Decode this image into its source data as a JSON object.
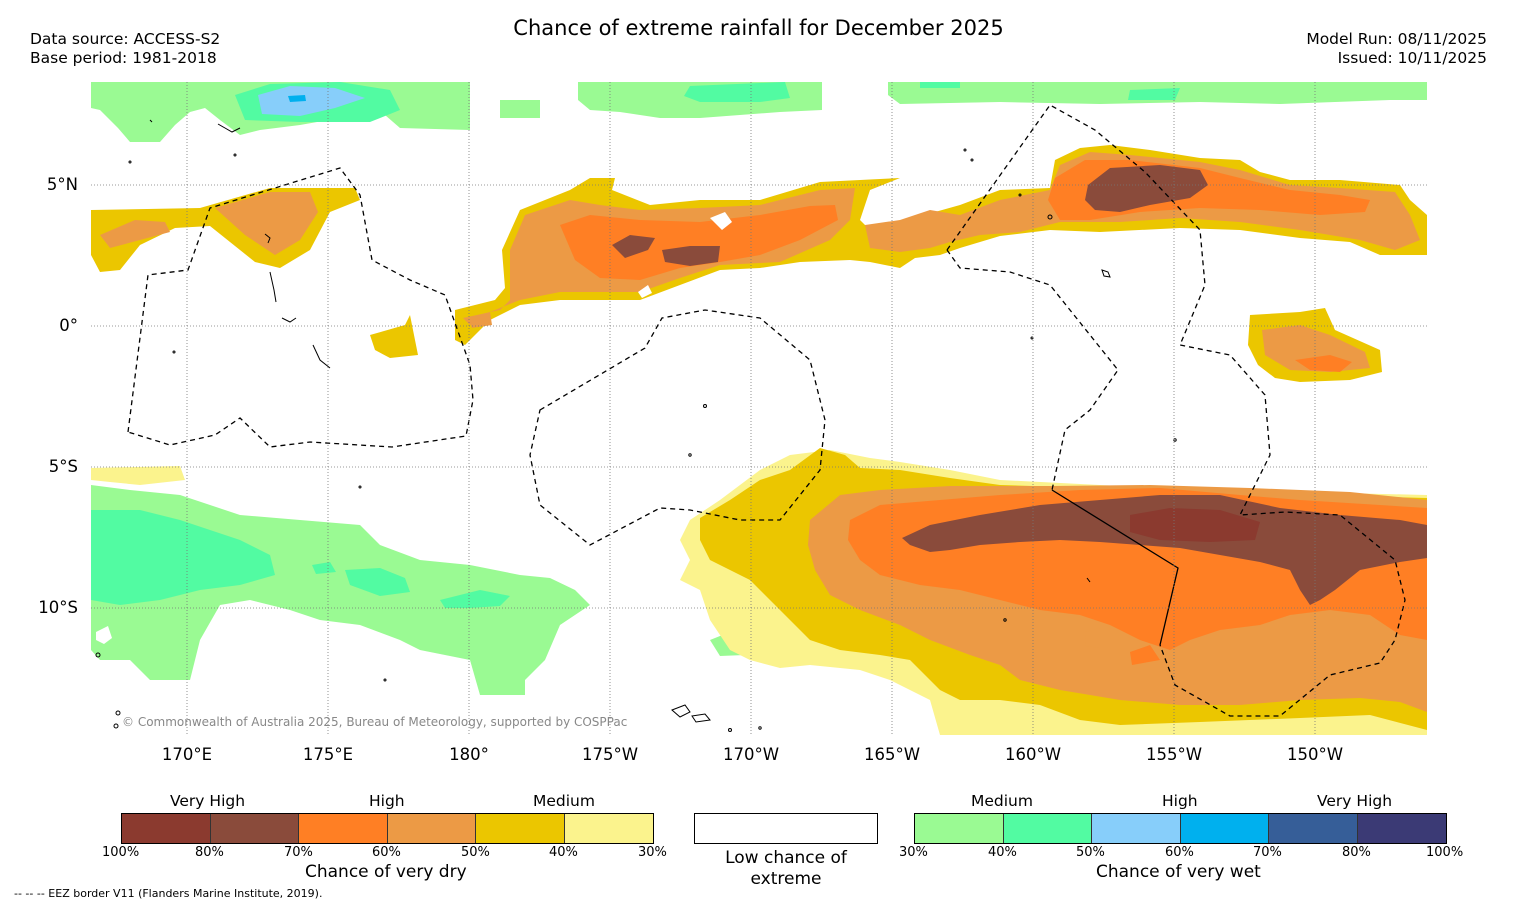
{
  "header": {
    "title": "Chance of extreme rainfall for December 2025",
    "data_source": "Data source: ACCESS-S2",
    "base_period": "Base period: 1981-2018",
    "model_run": "Model Run: 08/11/2025",
    "issued": "Issued: 10/11/2025"
  },
  "map": {
    "lat_labels": [
      "5°N",
      "0°",
      "5°S",
      "10°S"
    ],
    "lon_labels": [
      "170°E",
      "175°E",
      "180°",
      "175°W",
      "170°W",
      "165°W",
      "160°W",
      "155°W",
      "150°W"
    ],
    "copyright": "© Commonwealth of Australia 2025, Bureau of Meteorology, supported by COSPPac"
  },
  "legend": {
    "dry": {
      "categories": [
        "Very High",
        "High",
        "Medium"
      ],
      "percent_labels": [
        "100%",
        "80%",
        "70%",
        "60%",
        "50%",
        "40%",
        "30%"
      ],
      "colors": [
        "#8b3a2f",
        "#8a4b3b",
        "#ff7f24",
        "#ec9a45",
        "#ebc600",
        "#fbf38d"
      ],
      "title": "Chance of very dry"
    },
    "low": {
      "label": "Low chance of extreme"
    },
    "wet": {
      "categories": [
        "Medium",
        "High",
        "Very High"
      ],
      "percent_labels": [
        "30%",
        "40%",
        "50%",
        "60%",
        "70%",
        "80%",
        "100%"
      ],
      "colors": [
        "#9afa93",
        "#52fba2",
        "#87cefa",
        "#00b0ee",
        "#365e98",
        "#3b3a75"
      ],
      "title": "Chance of very wet"
    }
  },
  "footer": {
    "eez_note": "-- -- -- EEZ border V11 (Flanders Marine Institute, 2019)."
  }
}
